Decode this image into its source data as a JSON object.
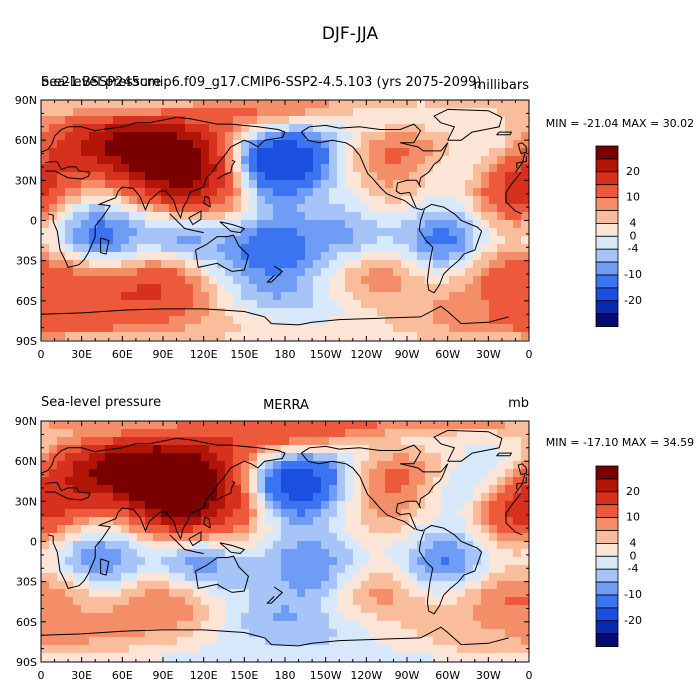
{
  "figure_title": "DJF-JJA",
  "chart_data": [
    {
      "type": "heatmap",
      "title_left_overlap_a": "Sea-level pressure",
      "title_left_overlap_b": "b.e21.BSSP245cmip6.f09_g17.CMIP6-SSP2-4.5.103 (yrs 2075-2099)",
      "title_center": "",
      "title_right": "millibars",
      "stats": "MIN = -21.04 MAX =  30.02",
      "x_ticks": [
        "0",
        "30E",
        "60E",
        "90E",
        "120E",
        "150E",
        "180",
        "150W",
        "120W",
        "90W",
        "60W",
        "30W",
        "0"
      ],
      "y_ticks": [
        "90N",
        "60N",
        "30N",
        "0",
        "30S",
        "60S",
        "90S"
      ],
      "xlim": [
        0,
        360
      ],
      "ylim": [
        -90,
        90
      ],
      "colorbar_labels": [
        "20",
        "10",
        "4",
        "0",
        "-4",
        "-10",
        "-20"
      ],
      "anomalies": [
        {
          "lon": 100,
          "lat": 42,
          "v": 24
        },
        {
          "lon": 60,
          "lat": 55,
          "v": 12
        },
        {
          "lon": 25,
          "lat": 62,
          "v": 10
        },
        {
          "lon": 140,
          "lat": 30,
          "v": 8
        },
        {
          "lon": 350,
          "lat": 30,
          "v": 14
        },
        {
          "lon": 255,
          "lat": 42,
          "v": 7
        },
        {
          "lon": 290,
          "lat": 75,
          "v": 5
        },
        {
          "lon": 170,
          "lat": 82,
          "v": 6
        },
        {
          "lon": 170,
          "lat": 50,
          "v": -20
        },
        {
          "lon": 30,
          "lat": 72,
          "v": -9
        },
        {
          "lon": 330,
          "lat": 65,
          "v": -10
        },
        {
          "lon": 40,
          "lat": -12,
          "v": -7
        },
        {
          "lon": 100,
          "lat": -22,
          "v": -8
        },
        {
          "lon": 170,
          "lat": -25,
          "v": -7
        },
        {
          "lon": 300,
          "lat": -20,
          "v": -7
        },
        {
          "lon": 230,
          "lat": -10,
          "v": -4
        },
        {
          "lon": 90,
          "lat": -47,
          "v": 14
        },
        {
          "lon": 20,
          "lat": -47,
          "v": 8
        },
        {
          "lon": 250,
          "lat": -45,
          "v": 7
        },
        {
          "lon": 330,
          "lat": -42,
          "v": 7
        },
        {
          "lon": 180,
          "lat": -83,
          "v": -3
        }
      ]
    },
    {
      "type": "heatmap",
      "title_left": "Sea-level pressure",
      "title_center": "MERRA",
      "title_right": "mb",
      "stats": "MIN = -17.10 MAX =  34.59",
      "x_ticks": [
        "0",
        "30E",
        "60E",
        "90E",
        "120E",
        "150E",
        "180",
        "150W",
        "120W",
        "90W",
        "60W",
        "30W",
        "0"
      ],
      "y_ticks": [
        "90N",
        "60N",
        "30N",
        "0",
        "30S",
        "60S",
        "90S"
      ],
      "xlim": [
        0,
        360
      ],
      "ylim": [
        -90,
        90
      ],
      "colorbar_labels": [
        "20",
        "10",
        "4",
        "0",
        "-4",
        "-10",
        "-20"
      ],
      "anomalies": [
        {
          "lon": 100,
          "lat": 40,
          "v": 30
        },
        {
          "lon": 60,
          "lat": 55,
          "v": 12
        },
        {
          "lon": 25,
          "lat": 45,
          "v": 10
        },
        {
          "lon": 140,
          "lat": 30,
          "v": 9
        },
        {
          "lon": 350,
          "lat": 30,
          "v": 12
        },
        {
          "lon": 255,
          "lat": 42,
          "v": 8
        },
        {
          "lon": 180,
          "lat": 85,
          "v": 9
        },
        {
          "lon": 290,
          "lat": 78,
          "v": 7
        },
        {
          "lon": 185,
          "lat": 52,
          "v": -17
        },
        {
          "lon": 25,
          "lat": 75,
          "v": -7
        },
        {
          "lon": 325,
          "lat": 62,
          "v": -11
        },
        {
          "lon": 40,
          "lat": -15,
          "v": -6
        },
        {
          "lon": 110,
          "lat": -22,
          "v": -8
        },
        {
          "lon": 200,
          "lat": -25,
          "v": -5
        },
        {
          "lon": 300,
          "lat": -20,
          "v": -6
        },
        {
          "lon": 95,
          "lat": -45,
          "v": 10
        },
        {
          "lon": 20,
          "lat": -40,
          "v": 5
        },
        {
          "lon": 250,
          "lat": -42,
          "v": 6
        },
        {
          "lon": 330,
          "lat": -45,
          "v": 6
        },
        {
          "lon": 180,
          "lat": -80,
          "v": -4
        }
      ]
    }
  ],
  "colorbar_colors": [
    "#060b70",
    "#0a2ba8",
    "#1a4fe0",
    "#3b74f0",
    "#6f9cf4",
    "#a6c4f7",
    "#d8e8fb",
    "#fce4d6",
    "#f9bd9c",
    "#f48e69",
    "#ec5a3b",
    "#d6301e",
    "#b01508",
    "#7a0000"
  ],
  "levels": [
    -25,
    -20,
    -15,
    -10,
    -6,
    -4,
    -2,
    0,
    2,
    4,
    6,
    10,
    15,
    20,
    25
  ]
}
